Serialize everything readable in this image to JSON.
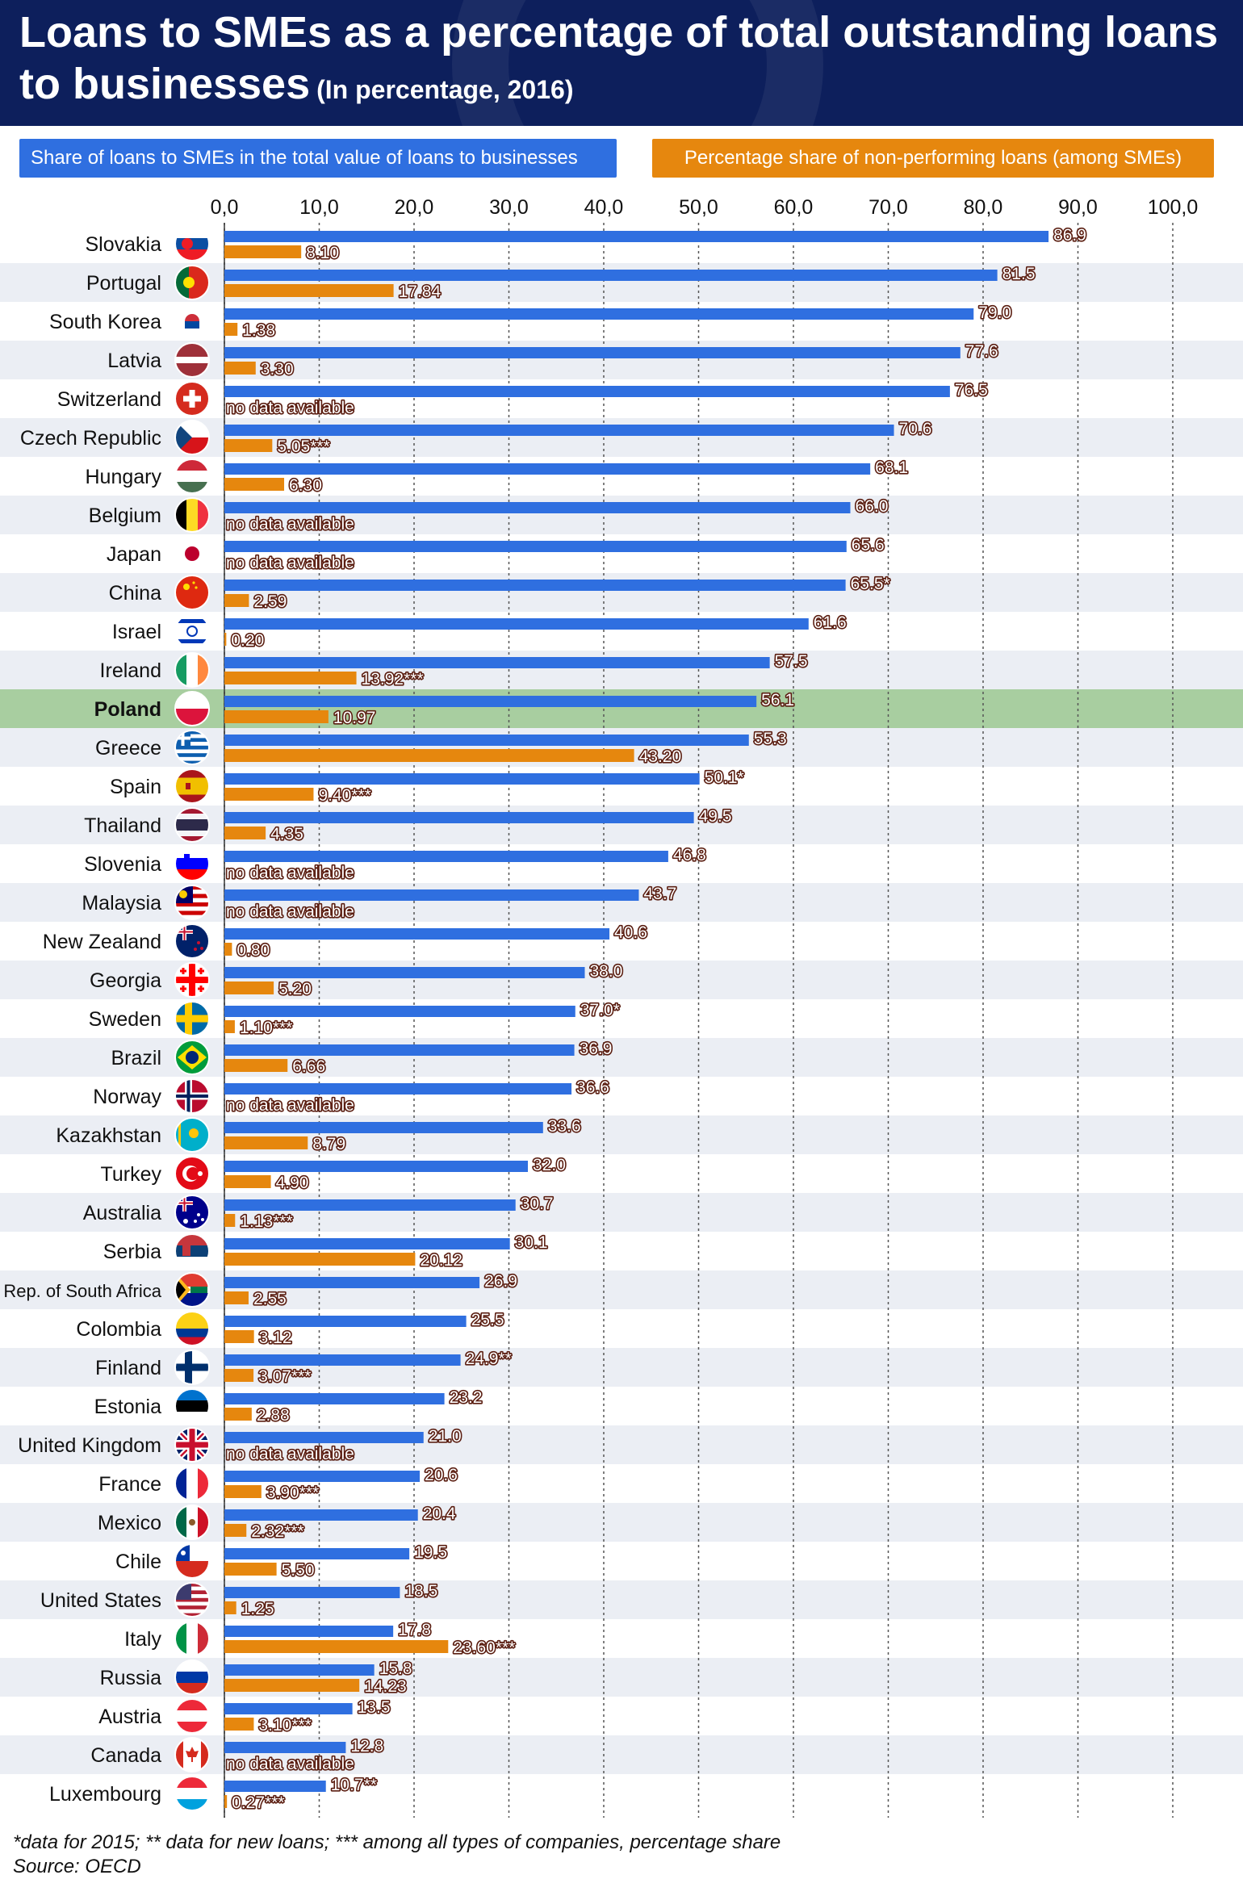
{
  "title": "Loans to SMEs as a percentage of total outstanding loans to businesses",
  "subtitle": "(In percentage, 2016)",
  "legend": {
    "blue": "Share of loans to SMEs in the total value of loans to businesses",
    "orange": "Percentage share of non-performing loans (among SMEs)"
  },
  "colors": {
    "blue": "#2f6fe0",
    "orange": "#e6870e",
    "highlight": "#a8ceA0",
    "stripe": "#ebeef4",
    "header": "#0d1f5c"
  },
  "footnote": "*data for 2015;  ** data for new loans;  *** among all types of companies, percentage share",
  "source": "Source: OECD",
  "chart_data": {
    "type": "bar",
    "orientation": "horizontal",
    "xlim": [
      0,
      100
    ],
    "ticks": [
      "0,0",
      "10,0",
      "20,0",
      "30,0",
      "40,0",
      "50,0",
      "60,0",
      "70,0",
      "80,0",
      "90,0",
      "100,0"
    ],
    "no_data_label": "no data available",
    "highlight": "Poland",
    "series": [
      {
        "name": "Share of loans to SMEs in the total value of loans to businesses",
        "color": "#2f6fe0"
      },
      {
        "name": "Percentage share of non-performing loans (among SMEs)",
        "color": "#e6870e"
      }
    ],
    "rows": [
      {
        "country": "Slovakia",
        "flag": "slovakia-flag",
        "sme": 86.9,
        "sme_label": "86.9",
        "npl": 8.1,
        "npl_label": "8.10"
      },
      {
        "country": "Portugal",
        "flag": "portugal-flag",
        "sme": 81.5,
        "sme_label": "81.5",
        "npl": 17.84,
        "npl_label": "17.84"
      },
      {
        "country": "South Korea",
        "flag": "south-korea-flag",
        "sme": 79.0,
        "sme_label": "79.0",
        "npl": 1.38,
        "npl_label": "1.38"
      },
      {
        "country": "Latvia",
        "flag": "latvia-flag",
        "sme": 77.6,
        "sme_label": "77.6",
        "npl": 3.3,
        "npl_label": "3.30"
      },
      {
        "country": "Switzerland",
        "flag": "switzerland-flag",
        "sme": 76.5,
        "sme_label": "76.5",
        "npl": null,
        "npl_label": null
      },
      {
        "country": "Czech Republic",
        "flag": "czech-republic-flag",
        "sme": 70.6,
        "sme_label": "70.6",
        "npl": 5.05,
        "npl_label": "5.05***"
      },
      {
        "country": "Hungary",
        "flag": "hungary-flag",
        "sme": 68.1,
        "sme_label": "68.1",
        "npl": 6.3,
        "npl_label": "6.30"
      },
      {
        "country": "Belgium",
        "flag": "belgium-flag",
        "sme": 66.0,
        "sme_label": "66.0",
        "npl": null,
        "npl_label": null
      },
      {
        "country": "Japan",
        "flag": "japan-flag",
        "sme": 65.6,
        "sme_label": "65.6",
        "npl": null,
        "npl_label": null
      },
      {
        "country": "China",
        "flag": "china-flag",
        "sme": 65.5,
        "sme_label": "65.5*",
        "npl": 2.59,
        "npl_label": "2.59"
      },
      {
        "country": "Israel",
        "flag": "israel-flag",
        "sme": 61.6,
        "sme_label": "61.6",
        "npl": 0.2,
        "npl_label": "0.20"
      },
      {
        "country": "Ireland",
        "flag": "ireland-flag",
        "sme": 57.5,
        "sme_label": "57.5",
        "npl": 13.92,
        "npl_label": "13.92***"
      },
      {
        "country": "Poland",
        "flag": "poland-flag",
        "sme": 56.1,
        "sme_label": "56.1",
        "npl": 10.97,
        "npl_label": "10.97"
      },
      {
        "country": "Greece",
        "flag": "greece-flag",
        "sme": 55.3,
        "sme_label": "55.3",
        "npl": 43.2,
        "npl_label": "43.20"
      },
      {
        "country": "Spain",
        "flag": "spain-flag",
        "sme": 50.1,
        "sme_label": "50.1*",
        "npl": 9.4,
        "npl_label": "9.40***"
      },
      {
        "country": "Thailand",
        "flag": "thailand-flag",
        "sme": 49.5,
        "sme_label": "49.5",
        "npl": 4.35,
        "npl_label": "4.35"
      },
      {
        "country": "Slovenia",
        "flag": "slovenia-flag",
        "sme": 46.8,
        "sme_label": "46.8",
        "npl": null,
        "npl_label": null
      },
      {
        "country": "Malaysia",
        "flag": "malaysia-flag",
        "sme": 43.7,
        "sme_label": "43.7",
        "npl": null,
        "npl_label": null
      },
      {
        "country": "New Zealand",
        "flag": "new-zealand-flag",
        "sme": 40.6,
        "sme_label": "40.6",
        "npl": 0.8,
        "npl_label": "0.80"
      },
      {
        "country": "Georgia",
        "flag": "georgia-flag",
        "sme": 38.0,
        "sme_label": "38.0",
        "npl": 5.2,
        "npl_label": "5.20"
      },
      {
        "country": "Sweden",
        "flag": "sweden-flag",
        "sme": 37.0,
        "sme_label": "37.0*",
        "npl": 1.1,
        "npl_label": "1.10***"
      },
      {
        "country": "Brazil",
        "flag": "brazil-flag",
        "sme": 36.9,
        "sme_label": "36.9",
        "npl": 6.66,
        "npl_label": "6.66"
      },
      {
        "country": "Norway",
        "flag": "norway-flag",
        "sme": 36.6,
        "sme_label": "36.6",
        "npl": null,
        "npl_label": null
      },
      {
        "country": "Kazakhstan",
        "flag": "kazakhstan-flag",
        "sme": 33.6,
        "sme_label": "33.6",
        "npl": 8.79,
        "npl_label": "8.79"
      },
      {
        "country": "Turkey",
        "flag": "turkey-flag",
        "sme": 32.0,
        "sme_label": "32.0",
        "npl": 4.9,
        "npl_label": "4.90"
      },
      {
        "country": "Australia",
        "flag": "australia-flag",
        "sme": 30.7,
        "sme_label": "30.7",
        "npl": 1.13,
        "npl_label": "1.13***"
      },
      {
        "country": "Serbia",
        "flag": "serbia-flag",
        "sme": 30.1,
        "sme_label": "30.1",
        "npl": 20.12,
        "npl_label": "20.12"
      },
      {
        "country": "Rep. of South Africa",
        "flag": "south-africa-flag",
        "sme": 26.9,
        "sme_label": "26.9",
        "npl": 2.55,
        "npl_label": "2.55"
      },
      {
        "country": "Colombia",
        "flag": "colombia-flag",
        "sme": 25.5,
        "sme_label": "25.5",
        "npl": 3.12,
        "npl_label": "3.12"
      },
      {
        "country": "Finland",
        "flag": "finland-flag",
        "sme": 24.9,
        "sme_label": "24.9**",
        "npl": 3.07,
        "npl_label": "3.07***"
      },
      {
        "country": "Estonia",
        "flag": "estonia-flag",
        "sme": 23.2,
        "sme_label": "23.2",
        "npl": 2.88,
        "npl_label": "2.88"
      },
      {
        "country": "United Kingdom",
        "flag": "united-kingdom-flag",
        "sme": 21.0,
        "sme_label": "21.0",
        "npl": null,
        "npl_label": null
      },
      {
        "country": "France",
        "flag": "france-flag",
        "sme": 20.6,
        "sme_label": "20.6",
        "npl": 3.9,
        "npl_label": "3.90***"
      },
      {
        "country": "Mexico",
        "flag": "mexico-flag",
        "sme": 20.4,
        "sme_label": "20.4",
        "npl": 2.32,
        "npl_label": "2.32***"
      },
      {
        "country": "Chile",
        "flag": "chile-flag",
        "sme": 19.5,
        "sme_label": "19.5",
        "npl": 5.5,
        "npl_label": "5.50"
      },
      {
        "country": "United States",
        "flag": "united-states-flag",
        "sme": 18.5,
        "sme_label": "18.5",
        "npl": 1.25,
        "npl_label": "1.25"
      },
      {
        "country": "Italy",
        "flag": "italy-flag",
        "sme": 17.8,
        "sme_label": "17.8",
        "npl": 23.6,
        "npl_label": "23.60***"
      },
      {
        "country": "Russia",
        "flag": "russia-flag",
        "sme": 15.8,
        "sme_label": "15.8",
        "npl": 14.23,
        "npl_label": "14.23"
      },
      {
        "country": "Austria",
        "flag": "austria-flag",
        "sme": 13.5,
        "sme_label": "13.5",
        "npl": 3.1,
        "npl_label": "3.10***"
      },
      {
        "country": "Canada",
        "flag": "canada-flag",
        "sme": 12.8,
        "sme_label": "12.8",
        "npl": null,
        "npl_label": null
      },
      {
        "country": "Luxembourg",
        "flag": "luxembourg-flag",
        "sme": 10.7,
        "sme_label": "10.7**",
        "npl": 0.27,
        "npl_label": "0.27***"
      }
    ]
  }
}
